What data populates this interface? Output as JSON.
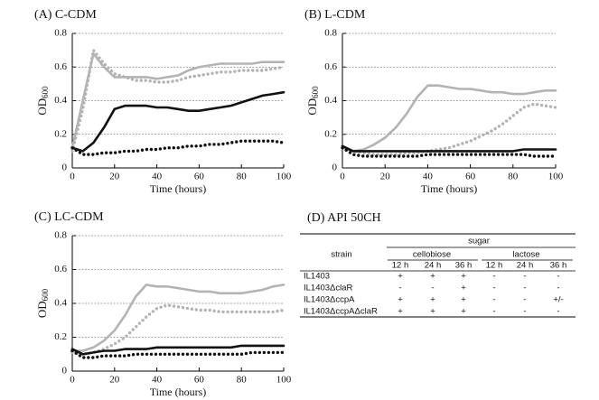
{
  "chart_data": [
    {
      "type": "line",
      "title": "(A) C-CDM",
      "xlabel": "Time (hours)",
      "ylabel": "OD",
      "ylabel_sub": "600",
      "x": [
        0,
        5,
        10,
        15,
        20,
        25,
        30,
        35,
        40,
        45,
        50,
        55,
        60,
        65,
        70,
        75,
        80,
        85,
        90,
        95,
        100
      ],
      "xlim": [
        0,
        100
      ],
      "xticks": [
        0,
        20,
        40,
        60,
        80,
        100
      ],
      "ylim": [
        0,
        0.8
      ],
      "yticks": [
        0,
        0.2,
        0.4,
        0.6,
        0.8
      ],
      "grid": true,
      "series": [
        {
          "color": "#b3b3b3",
          "style": "solid",
          "values": [
            0.12,
            0.4,
            0.68,
            0.6,
            0.54,
            0.54,
            0.54,
            0.54,
            0.53,
            0.54,
            0.55,
            0.58,
            0.6,
            0.61,
            0.62,
            0.62,
            0.62,
            0.62,
            0.63,
            0.63,
            0.63
          ]
        },
        {
          "color": "#b3b3b3",
          "style": "dotted",
          "values": [
            0.1,
            0.35,
            0.7,
            0.62,
            0.56,
            0.54,
            0.52,
            0.52,
            0.51,
            0.51,
            0.52,
            0.54,
            0.55,
            0.56,
            0.57,
            0.57,
            0.58,
            0.58,
            0.58,
            0.59,
            0.6
          ]
        },
        {
          "color": "#111111",
          "style": "solid",
          "values": [
            0.12,
            0.1,
            0.15,
            0.24,
            0.35,
            0.37,
            0.37,
            0.37,
            0.36,
            0.36,
            0.35,
            0.34,
            0.34,
            0.35,
            0.36,
            0.37,
            0.39,
            0.41,
            0.43,
            0.44,
            0.45
          ]
        },
        {
          "color": "#111111",
          "style": "dotted",
          "values": [
            0.12,
            0.08,
            0.08,
            0.09,
            0.09,
            0.1,
            0.1,
            0.11,
            0.11,
            0.12,
            0.12,
            0.13,
            0.13,
            0.14,
            0.14,
            0.15,
            0.16,
            0.16,
            0.16,
            0.16,
            0.15
          ]
        }
      ]
    },
    {
      "type": "line",
      "title": "(B) L-CDM",
      "xlabel": "Time (hours)",
      "ylabel": "OD",
      "ylabel_sub": "600",
      "x": [
        0,
        5,
        10,
        15,
        20,
        25,
        30,
        35,
        40,
        45,
        50,
        55,
        60,
        65,
        70,
        75,
        80,
        85,
        90,
        95,
        100
      ],
      "xlim": [
        0,
        100
      ],
      "xticks": [
        0,
        20,
        40,
        60,
        80,
        100
      ],
      "ylim": [
        0,
        0.8
      ],
      "yticks": [
        0,
        0.2,
        0.4,
        0.6,
        0.8
      ],
      "grid": true,
      "series": [
        {
          "color": "#b3b3b3",
          "style": "solid",
          "values": [
            0.12,
            0.1,
            0.11,
            0.14,
            0.18,
            0.24,
            0.32,
            0.42,
            0.49,
            0.49,
            0.48,
            0.47,
            0.47,
            0.46,
            0.45,
            0.45,
            0.44,
            0.44,
            0.45,
            0.46,
            0.46
          ]
        },
        {
          "color": "#b3b3b3",
          "style": "dotted",
          "values": [
            0.12,
            0.1,
            0.09,
            0.08,
            0.08,
            0.08,
            0.09,
            0.09,
            0.1,
            0.11,
            0.12,
            0.14,
            0.16,
            0.19,
            0.22,
            0.26,
            0.31,
            0.36,
            0.38,
            0.37,
            0.36
          ]
        },
        {
          "color": "#111111",
          "style": "solid",
          "values": [
            0.13,
            0.1,
            0.1,
            0.1,
            0.1,
            0.1,
            0.1,
            0.1,
            0.1,
            0.1,
            0.1,
            0.1,
            0.1,
            0.1,
            0.1,
            0.1,
            0.1,
            0.11,
            0.11,
            0.11,
            0.11
          ]
        },
        {
          "color": "#111111",
          "style": "dotted",
          "values": [
            0.12,
            0.08,
            0.07,
            0.07,
            0.07,
            0.07,
            0.07,
            0.07,
            0.08,
            0.08,
            0.08,
            0.08,
            0.08,
            0.08,
            0.08,
            0.08,
            0.08,
            0.08,
            0.07,
            0.07,
            0.07
          ]
        }
      ]
    },
    {
      "type": "line",
      "title": "(C) LC-CDM",
      "xlabel": "Time (hours)",
      "ylabel": "OD",
      "ylabel_sub": "600",
      "x": [
        0,
        5,
        10,
        15,
        20,
        25,
        30,
        35,
        40,
        45,
        50,
        55,
        60,
        65,
        70,
        75,
        80,
        85,
        90,
        95,
        100
      ],
      "xlim": [
        0,
        100
      ],
      "xticks": [
        0,
        20,
        40,
        60,
        80,
        100
      ],
      "ylim": [
        0,
        0.8
      ],
      "yticks": [
        0,
        0.2,
        0.4,
        0.6,
        0.8
      ],
      "grid": true,
      "series": [
        {
          "color": "#b3b3b3",
          "style": "solid",
          "values": [
            0.12,
            0.12,
            0.14,
            0.18,
            0.24,
            0.33,
            0.44,
            0.51,
            0.5,
            0.5,
            0.49,
            0.48,
            0.47,
            0.47,
            0.46,
            0.46,
            0.46,
            0.47,
            0.48,
            0.5,
            0.51
          ]
        },
        {
          "color": "#b3b3b3",
          "style": "dotted",
          "values": [
            0.11,
            0.1,
            0.11,
            0.13,
            0.16,
            0.2,
            0.26,
            0.32,
            0.37,
            0.39,
            0.38,
            0.37,
            0.36,
            0.36,
            0.35,
            0.35,
            0.35,
            0.35,
            0.35,
            0.35,
            0.36
          ]
        },
        {
          "color": "#111111",
          "style": "solid",
          "values": [
            0.13,
            0.1,
            0.11,
            0.12,
            0.12,
            0.13,
            0.13,
            0.13,
            0.14,
            0.14,
            0.14,
            0.14,
            0.14,
            0.14,
            0.14,
            0.14,
            0.15,
            0.15,
            0.15,
            0.15,
            0.15
          ]
        },
        {
          "color": "#111111",
          "style": "dotted",
          "values": [
            0.12,
            0.08,
            0.08,
            0.09,
            0.09,
            0.09,
            0.1,
            0.1,
            0.1,
            0.1,
            0.1,
            0.1,
            0.1,
            0.1,
            0.1,
            0.1,
            0.1,
            0.11,
            0.11,
            0.11,
            0.11
          ]
        }
      ]
    }
  ],
  "table": {
    "title": "(D) API 50CH",
    "group_header": "sugar",
    "strain_header": "strain",
    "sugars": [
      "cellobiose",
      "lactose"
    ],
    "times": [
      "12 h",
      "24 h",
      "36 h",
      "12 h",
      "24 h",
      "36 h"
    ],
    "rows": [
      {
        "strain": "IL1403",
        "cells": [
          "+",
          "+",
          "+",
          "-",
          "-",
          "-"
        ]
      },
      {
        "strain": "IL1403ΔclaR",
        "cells": [
          "-",
          "-",
          "+",
          "-",
          "-",
          "-"
        ]
      },
      {
        "strain": "IL1403ΔccpA",
        "cells": [
          "+",
          "+",
          "+",
          "-",
          "-",
          "+/-"
        ]
      },
      {
        "strain": "IL1403ΔccpAΔclaR",
        "cells": [
          "+",
          "+",
          "+",
          "-",
          "-",
          "-"
        ]
      }
    ]
  }
}
